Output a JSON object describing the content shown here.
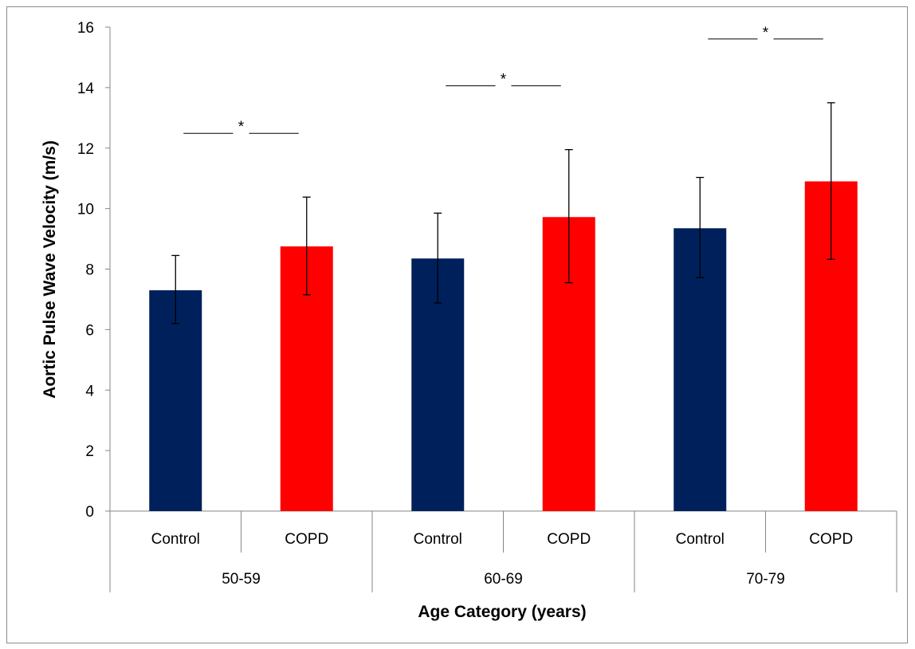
{
  "chart_data": {
    "type": "bar",
    "ylabel": "Aortic  Pulse Wave Velocity (m/s)",
    "xlabel": "Age Category (years)",
    "ylim": [
      0,
      16
    ],
    "yticks": [
      0,
      2,
      4,
      6,
      8,
      10,
      12,
      14,
      16
    ],
    "groups": [
      {
        "label": "50-59",
        "bars": [
          {
            "category": "Control",
            "value": 7.3,
            "error_low": 6.2,
            "error_high": 8.45,
            "color": "#00205b"
          },
          {
            "category": "COPD",
            "value": 8.75,
            "error_low": 7.15,
            "error_high": 10.38,
            "color": "#ff0000"
          }
        ],
        "significance": "*"
      },
      {
        "label": "60-69",
        "bars": [
          {
            "category": "Control",
            "value": 8.35,
            "error_low": 6.88,
            "error_high": 9.85,
            "color": "#00205b"
          },
          {
            "category": "COPD",
            "value": 9.72,
            "error_low": 7.55,
            "error_high": 11.95,
            "color": "#ff0000"
          }
        ],
        "significance": "*"
      },
      {
        "label": "70-79",
        "bars": [
          {
            "category": "Control",
            "value": 9.35,
            "error_low": 7.72,
            "error_high": 11.03,
            "color": "#00205b"
          },
          {
            "category": "COPD",
            "value": 10.9,
            "error_low": 8.32,
            "error_high": 13.5,
            "color": "#ff0000"
          }
        ],
        "significance": "*"
      }
    ],
    "grid": false,
    "legend": "none"
  }
}
